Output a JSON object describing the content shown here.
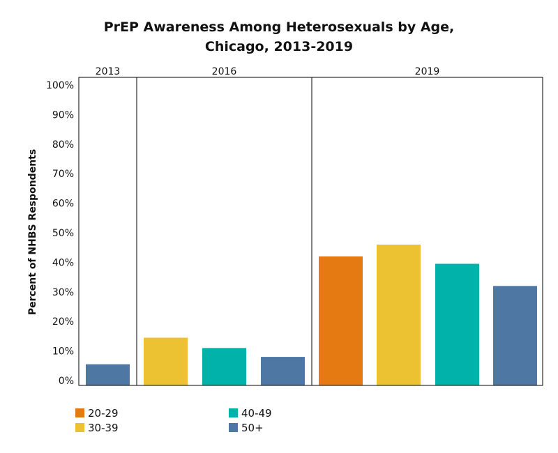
{
  "title_line1": "PrEP Awareness Among Heterosexuals by Age,",
  "title_line2": "Chicago, 2013-2019",
  "chart_data": {
    "type": "bar",
    "title": "PrEP Awareness Among Heterosexuals by Age, Chicago, 2013-2019",
    "ylabel": "Percent of NHBS Respondents",
    "xlabel": "",
    "ylim": [
      0,
      100
    ],
    "yticks": [
      0,
      10,
      20,
      30,
      40,
      50,
      60,
      70,
      80,
      90,
      100
    ],
    "ytick_labels": [
      "0%",
      "10%",
      "20%",
      "30%",
      "40%",
      "50%",
      "60%",
      "70%",
      "80%",
      "90%",
      "100%"
    ],
    "grid": false,
    "legend_position": "bottom-left",
    "groups": [
      {
        "label": "2013",
        "bars": [
          {
            "series": "50+",
            "value": 5.5
          }
        ]
      },
      {
        "label": "2016",
        "bars": [
          {
            "series": "30-39",
            "value": 14.5
          },
          {
            "series": "40-49",
            "value": 11
          },
          {
            "series": "50+",
            "value": 8
          }
        ]
      },
      {
        "label": "2019",
        "bars": [
          {
            "series": "20-29",
            "value": 42
          },
          {
            "series": "30-39",
            "value": 46
          },
          {
            "series": "40-49",
            "value": 39.5
          },
          {
            "series": "50+",
            "value": 32
          }
        ]
      }
    ],
    "series": [
      {
        "name": "20-29",
        "color": "#E67A12"
      },
      {
        "name": "30-39",
        "color": "#EDC232"
      },
      {
        "name": "40-49",
        "color": "#00B2A9"
      },
      {
        "name": "50+",
        "color": "#4E77A4"
      }
    ]
  }
}
